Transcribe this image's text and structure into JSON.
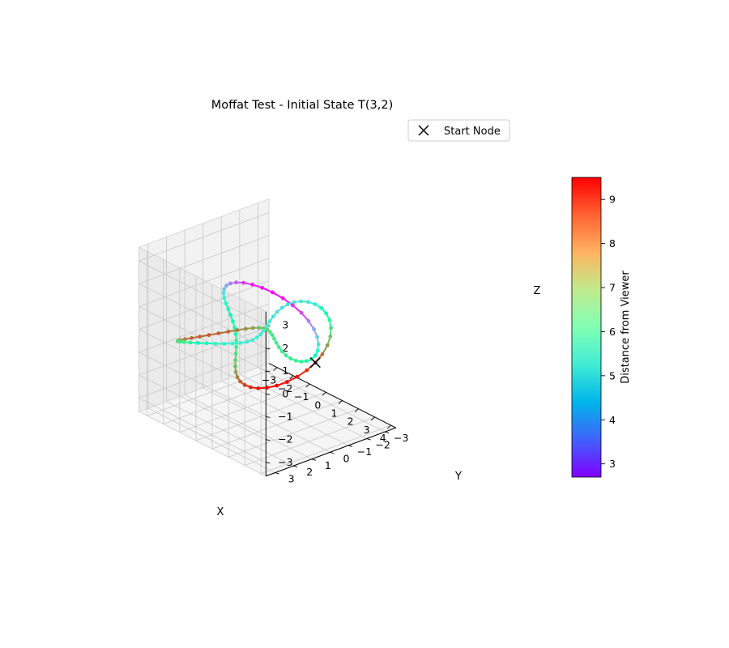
{
  "chart_data": {
    "type": "line3d",
    "title": "Moffat Test - Initial State T(3,2)",
    "xlabel": "X",
    "ylabel": "Y",
    "zlabel": "Z",
    "xlim": [
      -3.5,
      4.3
    ],
    "ylim": [
      -3.6,
      3.5
    ],
    "zlim": [
      -3.6,
      3.6
    ],
    "xticks": [
      "−3",
      "−2",
      "−1",
      "0",
      "1",
      "2",
      "3",
      "4"
    ],
    "yticks": [
      "−3",
      "−2",
      "−1",
      "0",
      "1",
      "2",
      "3"
    ],
    "zticks": [
      "−3",
      "−2",
      "−1",
      "0",
      "1",
      "2",
      "3"
    ],
    "grid": true,
    "legend": {
      "placement": "top-right",
      "entries": [
        "Start Node"
      ]
    },
    "colorbar": {
      "label": "Distance from Viewer",
      "ticks": [
        "3",
        "4",
        "5",
        "6",
        "7",
        "8",
        "9"
      ],
      "range": [
        2.7,
        9.5
      ],
      "colormap": "rainbow"
    },
    "curve": {
      "knot": "torus T(3,2)",
      "parametric": "x=(r_major + r_minor*cos(3t))*cos(2t), y=(r_major + r_minor*cos(3t))*sin(2t), z=-r_minor*sin(3t)",
      "r_major": 2.2,
      "r_minor": 1.2,
      "nodes": 100,
      "start_node": {
        "x": 3.4,
        "y": 0.0,
        "z": 0.0
      }
    }
  }
}
